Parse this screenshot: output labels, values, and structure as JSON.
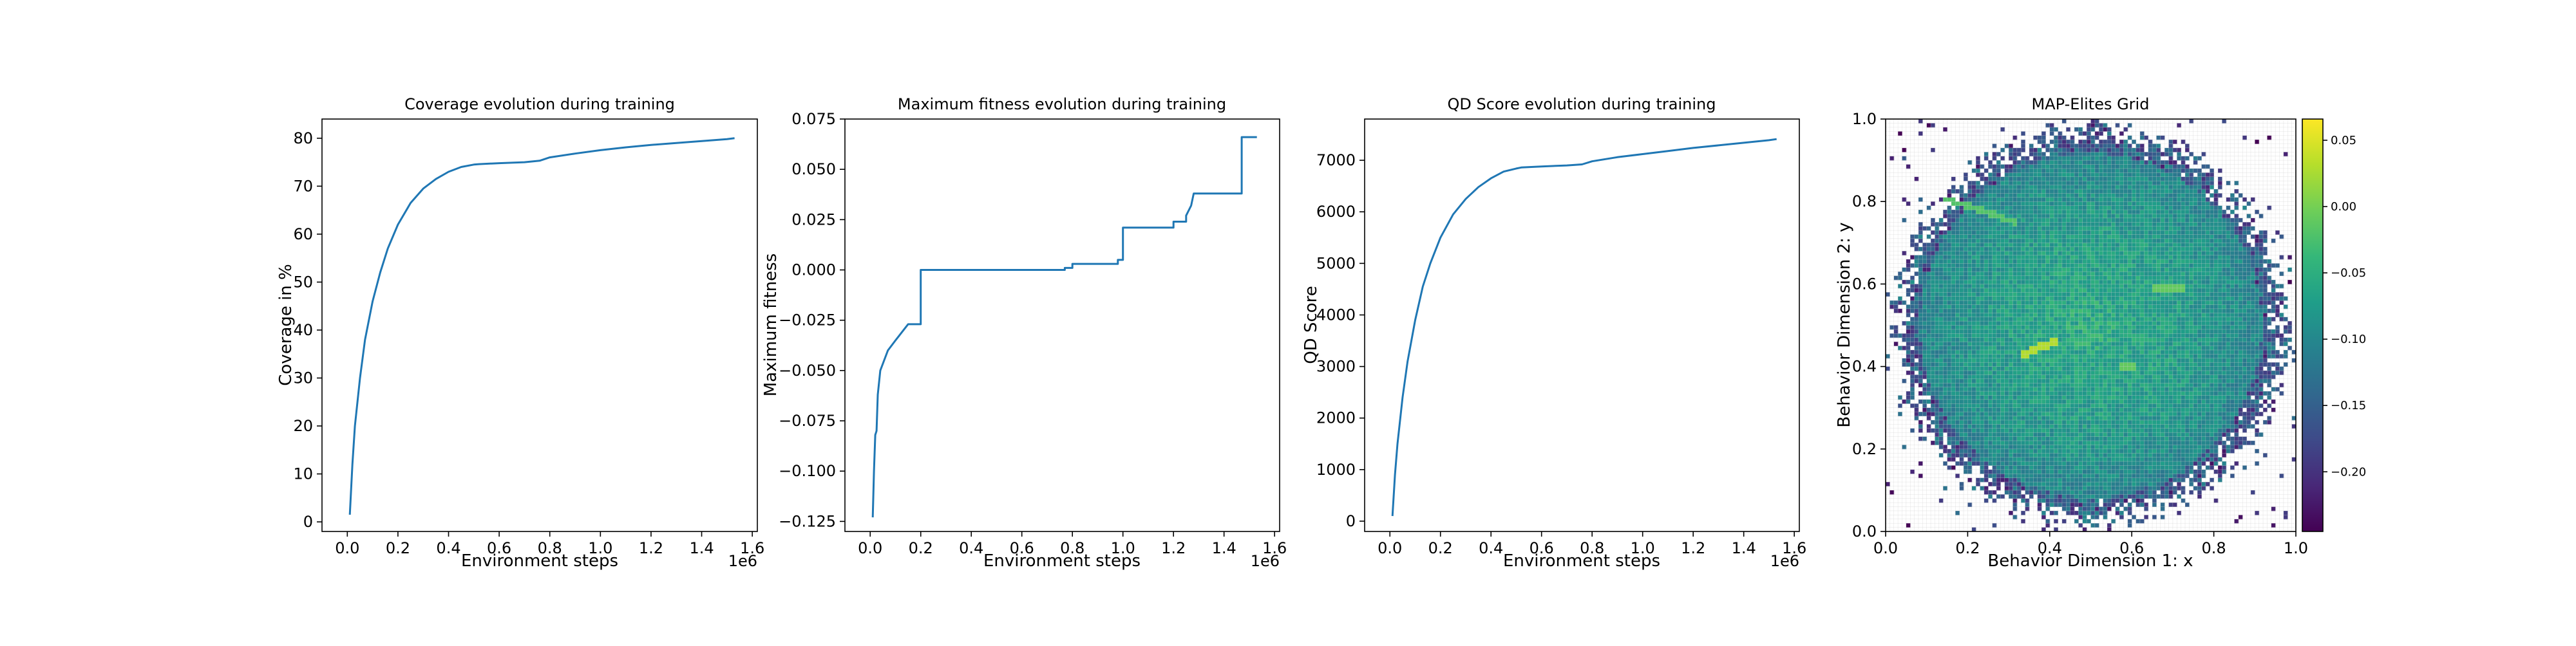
{
  "chart_data": [
    {
      "type": "line",
      "title": "Coverage evolution during training",
      "xlabel": "Environment steps",
      "ylabel": "Coverage in %",
      "x_offset_label": "1e6",
      "xlim": [
        -0.1,
        1.62
      ],
      "ylim": [
        -2,
        84
      ],
      "xticks": [
        0.0,
        0.2,
        0.4,
        0.6,
        0.8,
        1.0,
        1.2,
        1.4,
        1.6
      ],
      "xtick_labels": [
        "0.0",
        "0.2",
        "0.4",
        "0.6",
        "0.8",
        "1.0",
        "1.2",
        "1.4",
        "1.6"
      ],
      "yticks": [
        0,
        10,
        20,
        30,
        40,
        50,
        60,
        70,
        80
      ],
      "ytick_labels": [
        "0",
        "10",
        "20",
        "30",
        "40",
        "50",
        "60",
        "70",
        "80"
      ],
      "grid": false,
      "series": [
        {
          "x": [
            0.01,
            0.02,
            0.03,
            0.05,
            0.07,
            0.1,
            0.13,
            0.16,
            0.2,
            0.25,
            0.3,
            0.35,
            0.4,
            0.45,
            0.5,
            0.52,
            0.6,
            0.7,
            0.76,
            0.8,
            0.9,
            1.0,
            1.1,
            1.2,
            1.3,
            1.4,
            1.5,
            1.53
          ],
          "y": [
            1.5,
            12,
            20,
            30,
            38,
            46,
            52,
            57,
            62,
            66.5,
            69.5,
            71.5,
            73,
            74,
            74.5,
            74.6,
            74.8,
            75,
            75.3,
            76,
            76.8,
            77.5,
            78.1,
            78.6,
            79,
            79.4,
            79.8,
            80
          ]
        }
      ]
    },
    {
      "type": "line",
      "title": "Maximum fitness evolution during training",
      "xlabel": "Environment steps",
      "ylabel": "Maximum fitness",
      "x_offset_label": "1e6",
      "xlim": [
        -0.1,
        1.62
      ],
      "ylim": [
        -0.13,
        0.075
      ],
      "xticks": [
        0.0,
        0.2,
        0.4,
        0.6,
        0.8,
        1.0,
        1.2,
        1.4,
        1.6
      ],
      "xtick_labels": [
        "0.0",
        "0.2",
        "0.4",
        "0.6",
        "0.8",
        "1.0",
        "1.2",
        "1.4",
        "1.6"
      ],
      "yticks": [
        -0.125,
        -0.1,
        -0.075,
        -0.05,
        -0.025,
        0.0,
        0.025,
        0.05,
        0.075
      ],
      "ytick_labels": [
        "−0.125",
        "−0.100",
        "−0.075",
        "−0.050",
        "−0.025",
        "0.000",
        "0.025",
        "0.050",
        "0.075"
      ],
      "grid": false,
      "series": [
        {
          "x": [
            0.01,
            0.015,
            0.02,
            0.025,
            0.03,
            0.04,
            0.04,
            0.07,
            0.07,
            0.1,
            0.1,
            0.15,
            0.15,
            0.2,
            0.2,
            0.77,
            0.77,
            0.8,
            0.8,
            0.98,
            0.98,
            1.0,
            1.0,
            1.2,
            1.2,
            1.25,
            1.25,
            1.27,
            1.28,
            1.3,
            1.3,
            1.47,
            1.47,
            1.53
          ],
          "y": [
            -0.123,
            -0.1,
            -0.082,
            -0.08,
            -0.062,
            -0.05,
            -0.05,
            -0.04,
            -0.04,
            -0.035,
            -0.035,
            -0.027,
            -0.027,
            -0.027,
            0.0,
            0.0,
            0.001,
            0.001,
            0.003,
            0.003,
            0.005,
            0.005,
            0.021,
            0.021,
            0.024,
            0.024,
            0.027,
            0.032,
            0.038,
            0.038,
            0.038,
            0.038,
            0.066,
            0.066
          ]
        }
      ]
    },
    {
      "type": "line",
      "title": "QD Score evolution during training",
      "xlabel": "Environment steps",
      "ylabel": "QD Score",
      "x_offset_label": "1e6",
      "xlim": [
        -0.1,
        1.62
      ],
      "ylim": [
        -200,
        7800
      ],
      "xticks": [
        0.0,
        0.2,
        0.4,
        0.6,
        0.8,
        1.0,
        1.2,
        1.4,
        1.6
      ],
      "xtick_labels": [
        "0.0",
        "0.2",
        "0.4",
        "0.6",
        "0.8",
        "1.0",
        "1.2",
        "1.4",
        "1.6"
      ],
      "yticks": [
        0,
        1000,
        2000,
        3000,
        4000,
        5000,
        6000,
        7000
      ],
      "ytick_labels": [
        "0",
        "1000",
        "2000",
        "3000",
        "4000",
        "5000",
        "6000",
        "7000"
      ],
      "grid": false,
      "series": [
        {
          "x": [
            0.01,
            0.02,
            0.03,
            0.05,
            0.07,
            0.1,
            0.13,
            0.16,
            0.2,
            0.25,
            0.3,
            0.35,
            0.4,
            0.45,
            0.5,
            0.52,
            0.6,
            0.7,
            0.76,
            0.8,
            0.9,
            1.0,
            1.1,
            1.2,
            1.3,
            1.4,
            1.5,
            1.53
          ],
          "y": [
            100,
            900,
            1500,
            2400,
            3100,
            3900,
            4550,
            5000,
            5500,
            5950,
            6250,
            6480,
            6650,
            6780,
            6840,
            6860,
            6880,
            6900,
            6920,
            6980,
            7060,
            7120,
            7180,
            7240,
            7290,
            7340,
            7390,
            7410
          ]
        }
      ]
    },
    {
      "type": "heatmap",
      "title": "MAP-Elites Grid",
      "xlabel": "Behavior Dimension 1: x",
      "ylabel": "Behavior Dimension 2: y",
      "xlim": [
        0.0,
        1.0
      ],
      "ylim": [
        0.0,
        1.0
      ],
      "xticks": [
        0.0,
        0.2,
        0.4,
        0.6,
        0.8,
        1.0
      ],
      "xtick_labels": [
        "0.0",
        "0.2",
        "0.4",
        "0.6",
        "0.8",
        "1.0"
      ],
      "yticks": [
        0.0,
        0.2,
        0.4,
        0.6,
        0.8,
        1.0
      ],
      "ytick_labels": [
        "0.0",
        "0.2",
        "0.4",
        "0.6",
        "0.8",
        "1.0"
      ],
      "grid": true,
      "grid_cells": 100,
      "colormap": "viridis",
      "coverage_shape": "disc",
      "disc_center": [
        0.5,
        0.5
      ],
      "disc_radius": 0.49,
      "colorbar": {
        "range": [
          -0.245,
          0.066
        ],
        "ticks": [
          0.05,
          0.0,
          -0.05,
          -0.1,
          -0.15,
          -0.2
        ],
        "tick_labels": [
          "0.05",
          "0.00",
          "−0.05",
          "−0.10",
          "−0.15",
          "−0.20"
        ]
      }
    }
  ],
  "colors": {
    "series": "#1f77b4",
    "empty_cell": "#ffffff",
    "cell_grid": "#d0d0d0"
  }
}
